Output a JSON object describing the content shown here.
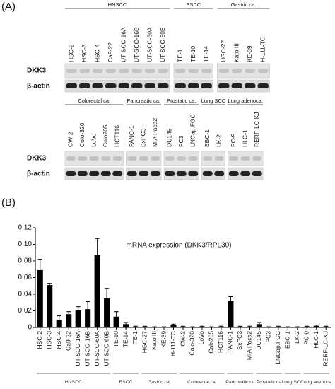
{
  "panel_a": {
    "label": "(A)",
    "rows": [
      "DKK3",
      "β-actin"
    ],
    "blots": [
      {
        "groups": [
          {
            "name": "HNSCC",
            "lanes": [
              "HSC-2",
              "HSC-3",
              "HSC-4",
              "Ca9-22",
              "UT-SCC-16A",
              "UT-SCC-16B",
              "UT-SCC-60A",
              "UT-SCC-60B"
            ]
          },
          {
            "name": "ESCC",
            "lanes": [
              "TE-1",
              "TE-10",
              "TE-14"
            ]
          },
          {
            "name": "Gastric ca.",
            "lanes": [
              "HGC-27",
              "Kato III",
              "KE-39",
              "H-111-TC"
            ]
          }
        ]
      },
      {
        "groups": [
          {
            "name": "Colorectal ca.",
            "lanes": [
              "CW-2",
              "Colo-320",
              "LoVo",
              "Colo205",
              "HCT116"
            ]
          },
          {
            "name": "Pancreatic ca.",
            "lanes": [
              "PANC-1",
              "BxPC3",
              "MIA Paca2"
            ]
          },
          {
            "name": "Prostatic ca.",
            "lanes": [
              "DU145",
              "PC3",
              "LNCap.FGC"
            ]
          },
          {
            "name": "Lung SCC",
            "lanes": [
              "EBC-1",
              "LK-2"
            ]
          },
          {
            "name": "Lung adenoca.",
            "lanes": [
              "PC-9",
              "HLC-1",
              "RERF-LC-KJ"
            ]
          }
        ]
      }
    ]
  },
  "panel_b_label": "(B)",
  "chart_data": {
    "type": "bar",
    "title": "mRNA expression (DKK3/RPL30)",
    "categories": [
      "HSC-2",
      "HSC-3",
      "HSC-4",
      "Ca9-22",
      "UT-SCC-16A",
      "UT-SCC-16B",
      "UT-SCC-60A",
      "UT-SCC-60B",
      "TE-10",
      "TE-14",
      "TE-1",
      "HGC-27",
      "Kato III",
      "KE-39",
      "H-111-TC",
      "CW-2",
      "Colo-320",
      "LoVo",
      "Colo205",
      "HCT116",
      "PANC-1",
      "BxPC3",
      "MIA Paca2",
      "DU145",
      "PC3",
      "LNCap.FGC",
      "EBC-1",
      "LK-2",
      "PC-9",
      "HLC-1",
      "RERF-LC-KJ"
    ],
    "values": [
      0.069,
      0.051,
      0.009,
      0.016,
      0.021,
      0.022,
      0.087,
      0.035,
      0.013,
      0.004,
      0.001,
      0.001,
      0.0005,
      0.0005,
      0.003,
      0.001,
      0.0005,
      0.001,
      0.0005,
      0.001,
      0.032,
      0.001,
      0.001,
      0.004,
      0.0005,
      0.001,
      0.0005,
      0.0005,
      0.001,
      0.002,
      0.001
    ],
    "errors": [
      0.013,
      0.002,
      0.005,
      0.003,
      0.004,
      0.009,
      0.02,
      0.012,
      0.006,
      0.002,
      0.0005,
      0.0005,
      0.0003,
      0.0003,
      0.001,
      0.0005,
      0.0003,
      0.0005,
      0.0003,
      0.0005,
      0.005,
      0.0005,
      0.0005,
      0.002,
      0.0003,
      0.0005,
      0.0003,
      0.0003,
      0.0005,
      0.001,
      0.0005
    ],
    "color": "#000000",
    "ylim": [
      0,
      0.12
    ],
    "yticks": [
      0,
      0.02,
      0.04,
      0.06,
      0.08,
      {
        "value": 0.1,
        "label": "0.10"
      },
      0.12
    ],
    "groups": [
      "HNSCC",
      "ESCC",
      "Gastric ca.",
      "Colorectal ca.",
      "Pancreatic ca",
      "Prostatic ca",
      "Lung SCC",
      "Lung adenoca"
    ]
  }
}
